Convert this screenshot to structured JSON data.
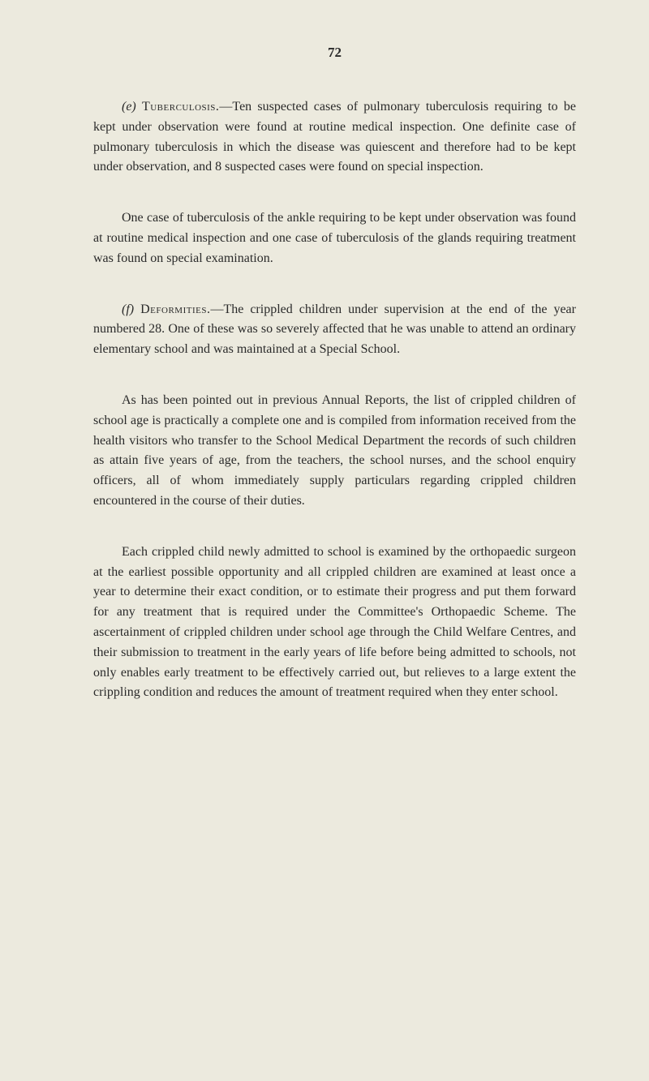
{
  "page_number": "72",
  "background_color": "#eceade",
  "body_background": "#e8e6d8",
  "text_color": "#2a2a2a",
  "font_size": 16,
  "line_height": 1.55,
  "paragraphs": {
    "p1_prefix": "(e) ",
    "p1_heading": "Tuberculosis.",
    "p1_text": "—Ten suspected cases of pulmonary tuberculosis requiring to be kept under observation were found at routine medical inspection. One definite case of pulmonary tuberculosis in which the disease was quiescent and therefore had to be kept under observation, and 8 suspected cases were found on special inspection.",
    "p2_text": "One case of tuberculosis of the ankle requiring to be kept under observation was found at routine medical inspection and one case of tuberculosis of the glands requiring treatment was found on special examination.",
    "p3_prefix": "(f) ",
    "p3_heading": "Deformities.",
    "p3_text": "—The crippled children under supervision at the end of the year numbered 28. One of these was so severely affected that he was unable to attend an ordinary elementary school and was maintained at a Special School.",
    "p4_text": "As has been pointed out in previous Annual Reports, the list of crippled children of school age is practically a complete one and is compiled from information received from the health visitors who transfer to the School Medical Department the records of such children as attain five years of age, from the teachers, the school nurses, and the school enquiry officers, all of whom immediately supply particulars regarding crippled children encountered in the course of their duties.",
    "p5_text": "Each crippled child newly admitted to school is examined by the orthopaedic surgeon at the earliest possible opportunity and all crippled children are examined at least once a year to determine their exact condition, or to estimate their progress and put them forward for any treatment that is required under the Committee's Orthopaedic Scheme. The ascertainment of crippled children under school age through the Child Welfare Centres, and their submission to treatment in the early years of life before being admitted to schools, not only enables early treatment to be effectively carried out, but relieves to a large extent the crippling condition and reduces the amount of treatment required when they enter school."
  }
}
